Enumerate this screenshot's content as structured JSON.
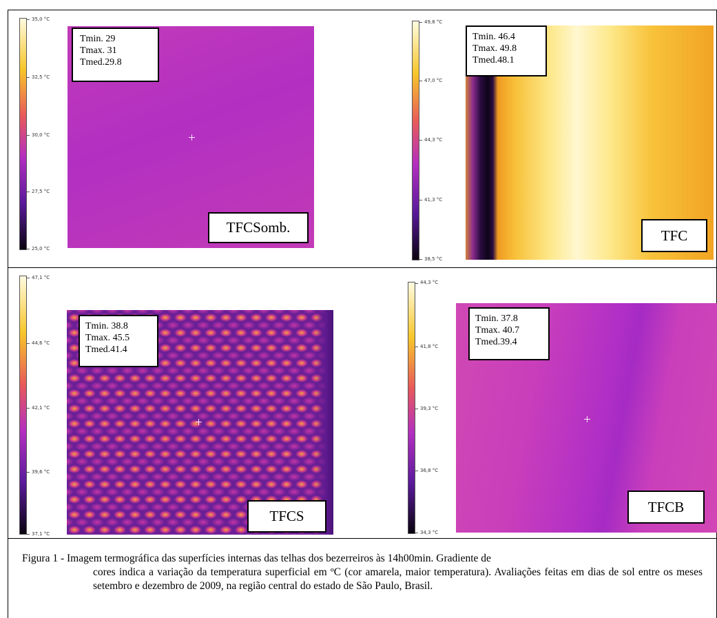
{
  "panels": [
    {
      "id": "tfcsomb",
      "scale_ticks": [
        "35,0 °C",
        "32,5 °C",
        "30,0 °C",
        "27,5 °C",
        "25,0 °C"
      ],
      "stats": {
        "tmin": "Tmin. 29",
        "tmax": "Tmax. 31",
        "tmed": "Tmed.29.8"
      },
      "label": "TFCSomb."
    },
    {
      "id": "tfc",
      "scale_ticks": [
        "49,8 °C",
        "47,0 °C",
        "44,3 °C",
        "41,3 °C",
        "38,5 °C"
      ],
      "stats": {
        "tmin": "Tmin. 46.4",
        "tmax": "Tmax. 49.8",
        "tmed": "Tmed.48.1"
      },
      "label": "TFC"
    },
    {
      "id": "tfcs",
      "scale_ticks": [
        "47,1 °C",
        "44,6 °C",
        "42,1 °C",
        "39,6 °C",
        "37,1 °C"
      ],
      "stats": {
        "tmin": "Tmin. 38.8",
        "tmax": "Tmax. 45.5",
        "tmed": "Tmed.41.4"
      },
      "label": "TFCS"
    },
    {
      "id": "tfcb",
      "scale_ticks": [
        "44,3 °C",
        "41,8 °C",
        "39,3 °C",
        "36,8 °C",
        "34,3 °C"
      ],
      "stats": {
        "tmin": "Tmin. 37.8",
        "tmax": "Tmax. 40.7",
        "tmed": "Tmed.39.4"
      },
      "label": "TFCB"
    }
  ],
  "caption": {
    "lead": "Figura 1 - Imagem termográfica das superfícies internas das telhas dos bezerreiros às 14h00min. Gradiente de",
    "rest": "cores indica a variação da temperatura superficial em ºC (cor amarela, maior temperatura). Avaliações feitas em dias de sol entre os meses setembro e dezembro de 2009, na região central do estado de São Paulo, Brasil."
  },
  "colors": {
    "palette_top": "#fffbe0",
    "palette_upper": "#f7c62a",
    "palette_mid": "#e0488a",
    "palette_lower": "#8a1fa0",
    "palette_bottom": "#0a0410",
    "magenta_field": "#b52fc0"
  }
}
